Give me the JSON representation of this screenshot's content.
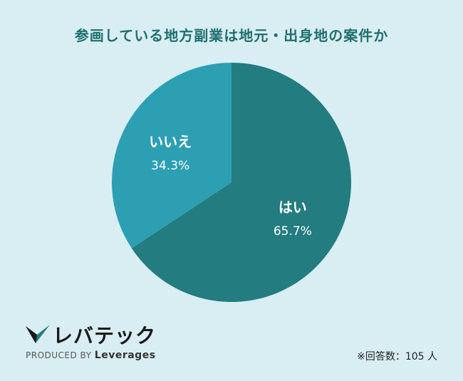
{
  "chart_data": {
    "type": "pie",
    "title": "参画している地方副業は地元・出身地の案件か",
    "categories": [
      "はい",
      "いいえ"
    ],
    "values": [
      65.7,
      34.3
    ],
    "labels": [
      "65.7%",
      "34.3%"
    ],
    "colors": [
      "#237c7f",
      "#2c9fb3"
    ],
    "start": "12 o'clock, clockwise"
  },
  "branding": {
    "logo_text": "レバテック",
    "produced_by": "PRODUCED BY",
    "brand": "Leverages"
  },
  "note": "※回答数：105 人"
}
